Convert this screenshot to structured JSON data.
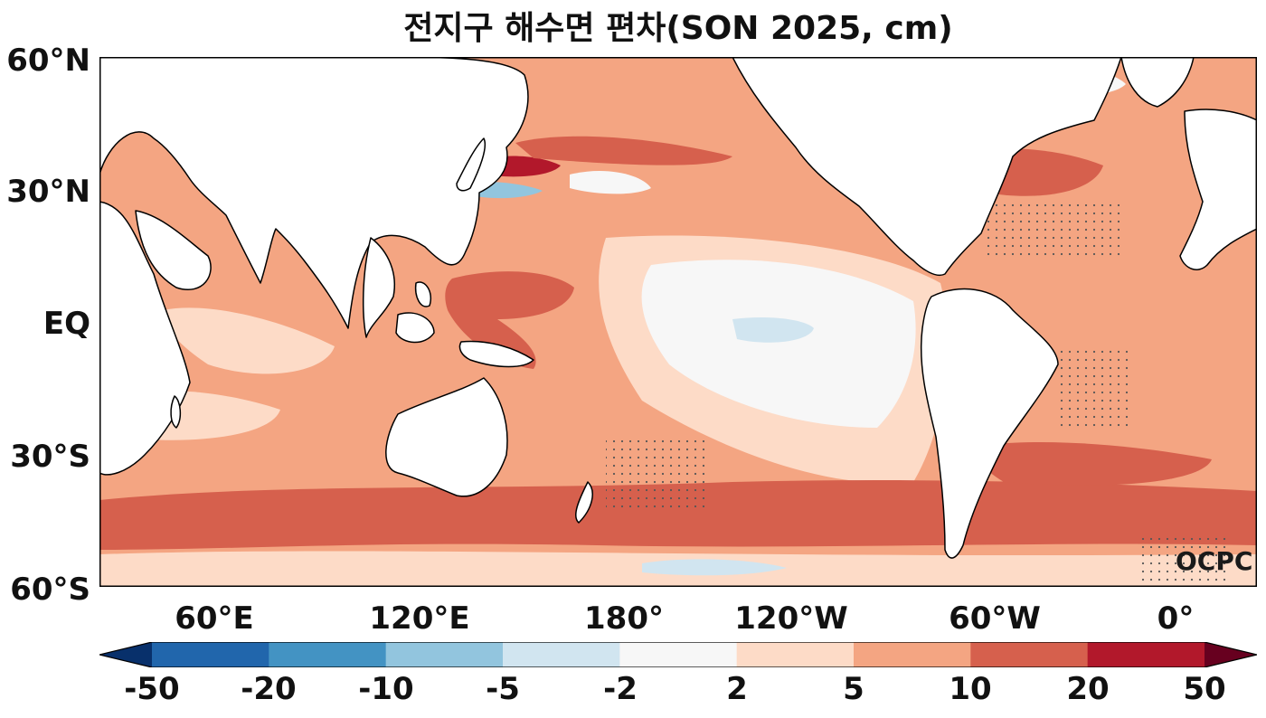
{
  "title": "전지구 해수면 편차(SON 2025, cm)",
  "axes": {
    "lat_labels": [
      "60°N",
      "30°N",
      "EQ",
      "30°S",
      "60°S"
    ],
    "lon_labels": [
      "60°E",
      "120°E",
      "180°",
      "120°W",
      "60°W",
      "0°"
    ]
  },
  "colorbar": {
    "tick_labels": [
      "-50",
      "-20",
      "-10",
      "-5",
      "-2",
      "2",
      "5",
      "10",
      "20",
      "50"
    ],
    "colors": [
      "#08306b",
      "#2166ac",
      "#4393c3",
      "#92c5de",
      "#d1e5f0",
      "#f7f7f7",
      "#fddbc7",
      "#f4a582",
      "#d6604d",
      "#b2182b",
      "#67001f"
    ]
  },
  "watermark": "OCPC"
}
